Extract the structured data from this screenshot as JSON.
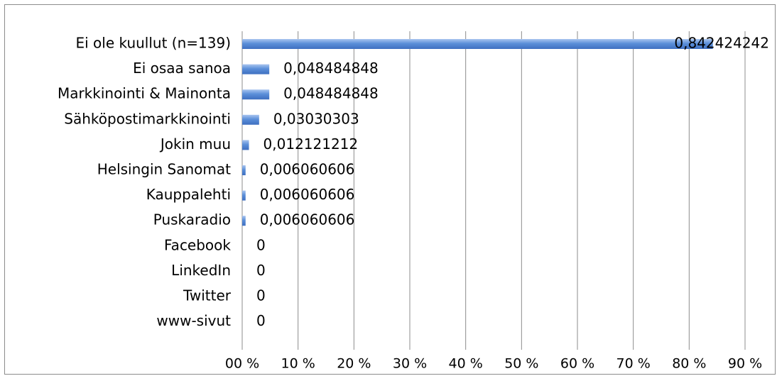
{
  "chart_data": {
    "type": "bar",
    "orientation": "horizontal",
    "title": "",
    "xlabel": "",
    "ylabel": "",
    "categories": [
      "Ei ole kuullut (n=139)",
      "Ei osaa sanoa",
      "Markkinointi & Mainonta",
      "Sähköpostimarkkinointi",
      "Jokin muu",
      "Helsingin Sanomat",
      "Kauppalehti",
      "Puskaradio",
      "Facebook",
      "LinkedIn",
      "Twitter",
      "www-sivut"
    ],
    "values": [
      0.842424242,
      0.048484848,
      0.048484848,
      0.03030303,
      0.012121212,
      0.006060606,
      0.006060606,
      0.006060606,
      0,
      0,
      0,
      0
    ],
    "data_labels": [
      "0,842424242",
      "0,048484848",
      "0,048484848",
      "0,03030303",
      "0,012121212",
      "0,006060606",
      "0,006060606",
      "0,006060606",
      "0",
      "0",
      "0",
      "0"
    ],
    "xlim": [
      0,
      0.9
    ],
    "x_ticks": [
      0,
      0.1,
      0.2,
      0.3,
      0.4,
      0.5,
      0.6,
      0.7,
      0.8,
      0.9
    ],
    "x_tick_labels": [
      "00 %",
      "10 %",
      "20 %",
      "30 %",
      "40 %",
      "50 %",
      "60 %",
      "70 %",
      "80 %",
      "90 %"
    ],
    "grid": true,
    "legend": "none",
    "colors": {
      "bar": "#5b8fd9",
      "bar_light": "#a9c5ef",
      "bar_dark": "#3e6fc0",
      "grid": "#8c8c8c"
    }
  }
}
